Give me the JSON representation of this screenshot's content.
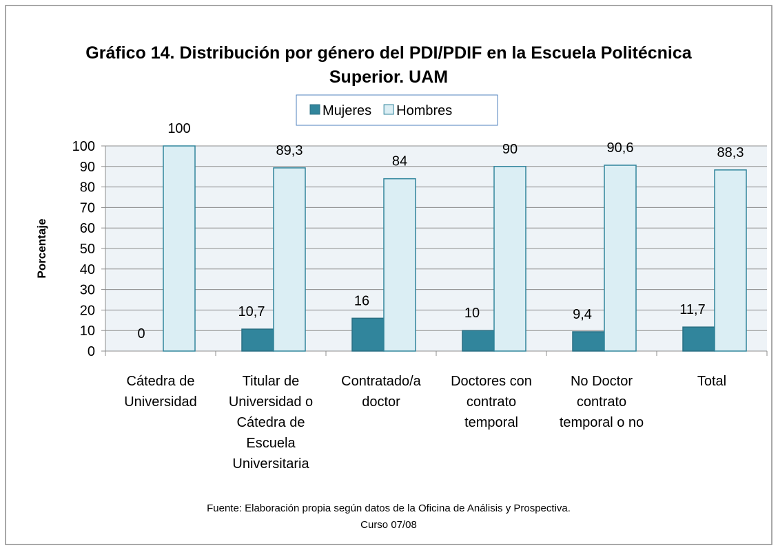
{
  "chart_data": {
    "type": "bar",
    "title": "Gráfico 14. Distribución por género del PDI/PDIF en la Escuela Politécnica Superior. UAM",
    "y_label": "Porcentaje",
    "categories": [
      "Cátedra de Universidad",
      "Titular de Universidad o Cátedra de Escuela Universitaria",
      "Contratado/a doctor",
      "Doctores con contrato temporal",
      "No Doctor contrato temporal o no",
      "Total"
    ],
    "series": [
      {
        "name": "Mujeres",
        "color": "#31859c",
        "values": [
          0,
          10.7,
          16,
          10,
          9.4,
          11.7
        ],
        "value_labels": [
          "0",
          "10,7",
          "16",
          "10",
          "9,4",
          "11,7"
        ]
      },
      {
        "name": "Hombres",
        "color": "#dbeef4",
        "values": [
          100,
          89.3,
          84,
          90,
          90.6,
          88.3
        ],
        "value_labels": [
          "100",
          "89,3",
          "84",
          "90",
          "90,6",
          "88,3"
        ]
      }
    ],
    "ylim": [
      0,
      100
    ],
    "yticks": [
      0,
      10,
      20,
      30,
      40,
      50,
      60,
      70,
      80,
      90,
      100
    ],
    "grid": true,
    "legend": "top",
    "source": [
      "Fuente: Elaboración propia según datos de la Oficina de Análisis y Prospectiva.",
      "Curso 07/08"
    ]
  }
}
